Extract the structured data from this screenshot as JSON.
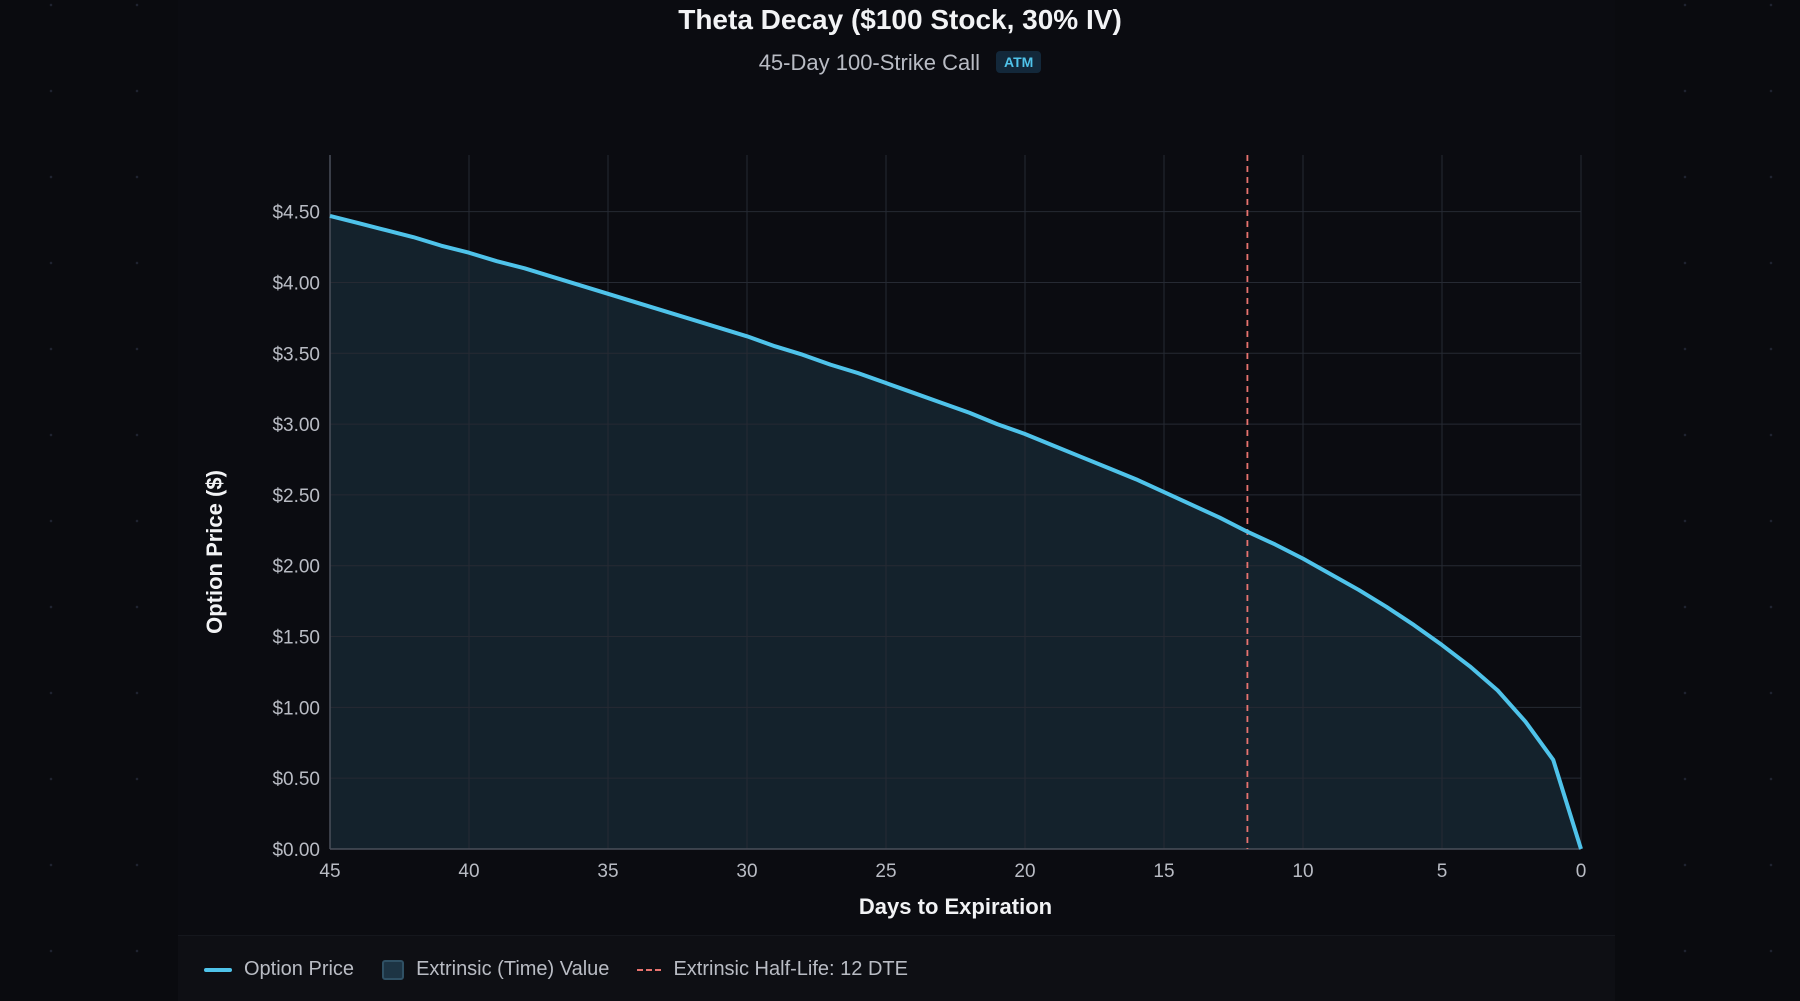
{
  "chart_data": {
    "type": "area",
    "title": "Theta Decay ($100 Stock, 30% IV)",
    "subtitle": "45-Day 100-Strike Call",
    "badge": "ATM",
    "xlabel": "Days to Expiration",
    "ylabel": "Option Price ($)",
    "xlim": [
      45,
      0
    ],
    "ylim": [
      0,
      4.9
    ],
    "x_reversed": true,
    "grid": true,
    "legend_placement": "bottom-left",
    "xticks": [
      45,
      40,
      35,
      30,
      25,
      20,
      15,
      10,
      5,
      0
    ],
    "yticks": [
      0,
      0.5,
      1,
      1.5,
      2,
      2.5,
      3,
      3.5,
      4,
      4.5
    ],
    "ytick_labels": [
      "$0.00",
      "$0.50",
      "$1.00",
      "$1.50",
      "$2.00",
      "$2.50",
      "$3.00",
      "$3.50",
      "$4.00",
      "$4.50"
    ],
    "series": [
      {
        "name": "Option Price",
        "color": "#4fc3ea",
        "x": [
          45,
          44,
          43,
          42,
          41,
          40,
          39,
          38,
          37,
          36,
          35,
          34,
          33,
          32,
          31,
          30,
          29,
          28,
          27,
          26,
          25,
          24,
          23,
          22,
          21,
          20,
          19,
          18,
          17,
          16,
          15,
          14,
          13,
          12,
          11,
          10,
          9,
          8,
          7,
          6,
          5,
          4,
          3,
          2,
          1,
          0
        ],
        "y": [
          4.47,
          4.42,
          4.37,
          4.32,
          4.26,
          4.21,
          4.15,
          4.1,
          4.04,
          3.98,
          3.92,
          3.86,
          3.8,
          3.74,
          3.68,
          3.62,
          3.55,
          3.49,
          3.42,
          3.36,
          3.29,
          3.22,
          3.15,
          3.08,
          3.0,
          2.93,
          2.85,
          2.77,
          2.69,
          2.61,
          2.52,
          2.43,
          2.34,
          2.24,
          2.15,
          2.05,
          1.94,
          1.83,
          1.71,
          1.58,
          1.44,
          1.29,
          1.12,
          0.9,
          0.63,
          0
        ]
      }
    ],
    "area": {
      "name": "Extrinsic (Time) Value",
      "color": "#1d3444"
    },
    "reference_line": {
      "name": "Extrinsic Half-Life: 12 DTE",
      "x": 12,
      "color": "#e8736f",
      "style": "dashed"
    }
  }
}
